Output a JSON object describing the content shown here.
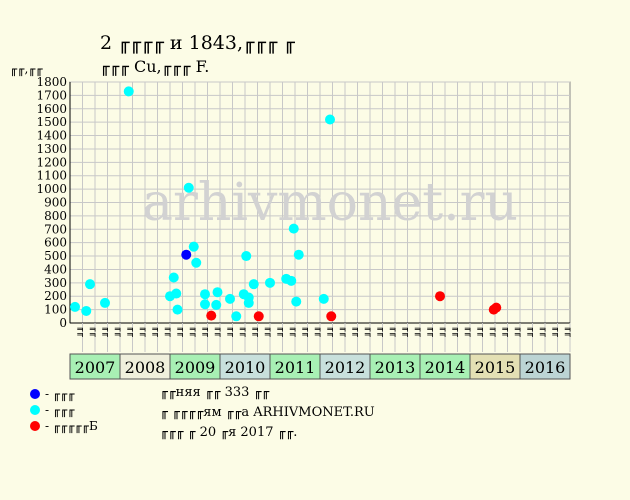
{
  "title": "2 ╓╓╓╓ и 1843,╓╓╓ ╓",
  "subtitle": "╓╓╓ Cu,╓╓╓ F.",
  "y_unit": "╓╓,╓╓",
  "watermark": "arhivmonet.ru",
  "legend": [
    {
      "label": "- ╓╓╓",
      "color": "#0000ff"
    },
    {
      "label": "- ╓╓╓",
      "color": "#00ffff"
    },
    {
      "label": "- ╓╓╓╓╓Б",
      "color": "#ff0000"
    }
  ],
  "notes": [
    "╓╓няя ╓╓ 333 ╓╓",
    "╓ ╓╓╓╓ям ╓╓а ARHIVMONET.RU",
    "╓╓╓ ╓ 20 ╓я 2017 ╓╓."
  ],
  "chart_data": {
    "type": "scatter",
    "ylim": [
      0,
      1800
    ],
    "yticks": [
      0,
      100,
      200,
      300,
      400,
      500,
      600,
      700,
      800,
      900,
      1000,
      1100,
      1200,
      1300,
      1400,
      1500,
      1600,
      1700,
      1800
    ],
    "grid": true,
    "years": [
      {
        "label": "2007",
        "color": "#a8f0b4"
      },
      {
        "label": "2008",
        "color": "#f0f0dc"
      },
      {
        "label": "2009",
        "color": "#a8f0b4"
      },
      {
        "label": "2010",
        "color": "#c8e0dc"
      },
      {
        "label": "2011",
        "color": "#a8f0b4"
      },
      {
        "label": "2012",
        "color": "#c8e0dc"
      },
      {
        "label": "2013",
        "color": "#a8f0b4"
      },
      {
        "label": "2014",
        "color": "#a8f0b4"
      },
      {
        "label": "2015",
        "color": "#e4e0b4"
      },
      {
        "label": "2016",
        "color": "#bcd4d4"
      }
    ],
    "month_labels": [
      "╓╓",
      "╓╓",
      "╓╓",
      "╓╓",
      "╓╓",
      "╓╓",
      "╓╓",
      "╓╓",
      "╓╓",
      "╓╓",
      "╓╓",
      "╓╓",
      "╓╓",
      "╓╓",
      "╓╓",
      "╓╓",
      "╓╓",
      "╓╓",
      "╓╓",
      "╓╓",
      "╓╓",
      "╓╓",
      "╓╓",
      "╓╓",
      "╓╓",
      "╓╓",
      "╓╓",
      "╓╓",
      "╓╓",
      "╓╓",
      "╓╓",
      "╓╓",
      "╓╓",
      "╓╓",
      "╓╓",
      "╓╓",
      "╓╓",
      "╓╓",
      "╓╓",
      "╓╓"
    ],
    "series": [
      {
        "name": "- ╓╓╓",
        "color": "#0000ff",
        "points": [
          [
            9.3,
            510
          ]
        ]
      },
      {
        "name": "- ╓╓╓",
        "color": "#00ffff",
        "points": [
          [
            0.4,
            120
          ],
          [
            1.3,
            90
          ],
          [
            1.6,
            290
          ],
          [
            2.8,
            150
          ],
          [
            4.7,
            1730
          ],
          [
            8.0,
            200
          ],
          [
            8.3,
            340
          ],
          [
            8.5,
            220
          ],
          [
            8.6,
            100
          ],
          [
            9.5,
            1010
          ],
          [
            9.9,
            570
          ],
          [
            10.1,
            450
          ],
          [
            10.8,
            215
          ],
          [
            10.8,
            140
          ],
          [
            11.8,
            230
          ],
          [
            11.7,
            135
          ],
          [
            12.8,
            180
          ],
          [
            13.3,
            50
          ],
          [
            13.9,
            215
          ],
          [
            14.1,
            500
          ],
          [
            14.3,
            190
          ],
          [
            14.3,
            150
          ],
          [
            14.7,
            290
          ],
          [
            16.0,
            300
          ],
          [
            17.3,
            330
          ],
          [
            17.7,
            315
          ],
          [
            17.9,
            705
          ],
          [
            18.1,
            160
          ],
          [
            18.3,
            510
          ],
          [
            20.3,
            180
          ],
          [
            20.8,
            1520
          ]
        ]
      },
      {
        "name": "- ╓╓╓╓╓Б",
        "color": "#ff0000",
        "points": [
          [
            11.3,
            55
          ],
          [
            15.1,
            50
          ],
          [
            20.9,
            50
          ],
          [
            29.6,
            200
          ],
          [
            33.9,
            100
          ],
          [
            34.1,
            115
          ]
        ]
      }
    ]
  }
}
